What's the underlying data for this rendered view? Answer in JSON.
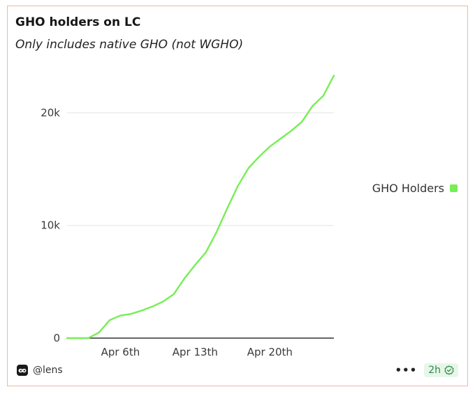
{
  "card": {
    "author": "@lens",
    "time": "2h"
  },
  "chart_data": {
    "type": "line",
    "title": "GHO holders on LC",
    "subtitle": "Only includes native GHO (not WGHO)",
    "xlabel": "",
    "ylabel": "",
    "ylim": [
      0,
      23500
    ],
    "x_day_range": [
      1,
      26
    ],
    "y_ticks": [
      {
        "value": 0,
        "label": "0"
      },
      {
        "value": 10000,
        "label": "10k"
      },
      {
        "value": 20000,
        "label": "20k"
      }
    ],
    "x_ticks": [
      {
        "day": 6,
        "label": "Apr 6th"
      },
      {
        "day": 13,
        "label": "Apr 13th"
      },
      {
        "day": 20,
        "label": "Apr 20th"
      }
    ],
    "grid": true,
    "legend": "right",
    "series": [
      {
        "name": "GHO Holders",
        "color": "#77ee55",
        "points": [
          {
            "day": 1,
            "value": 0
          },
          {
            "day": 3,
            "value": 0
          },
          {
            "day": 4,
            "value": 500
          },
          {
            "day": 5,
            "value": 1600
          },
          {
            "day": 6,
            "value": 2000
          },
          {
            "day": 7,
            "value": 2150
          },
          {
            "day": 8,
            "value": 2450
          },
          {
            "day": 9,
            "value": 2800
          },
          {
            "day": 10,
            "value": 3250
          },
          {
            "day": 11,
            "value": 3900
          },
          {
            "day": 12,
            "value": 5300
          },
          {
            "day": 13,
            "value": 6500
          },
          {
            "day": 14,
            "value": 7600
          },
          {
            "day": 15,
            "value": 9400
          },
          {
            "day": 16,
            "value": 11500
          },
          {
            "day": 17,
            "value": 13500
          },
          {
            "day": 18,
            "value": 15100
          },
          {
            "day": 19,
            "value": 16100
          },
          {
            "day": 20,
            "value": 17000
          },
          {
            "day": 21,
            "value": 17700
          },
          {
            "day": 22,
            "value": 18400
          },
          {
            "day": 23,
            "value": 19200
          },
          {
            "day": 24,
            "value": 20600
          },
          {
            "day": 25,
            "value": 21500
          },
          {
            "day": 26,
            "value": 23300
          }
        ]
      }
    ]
  }
}
